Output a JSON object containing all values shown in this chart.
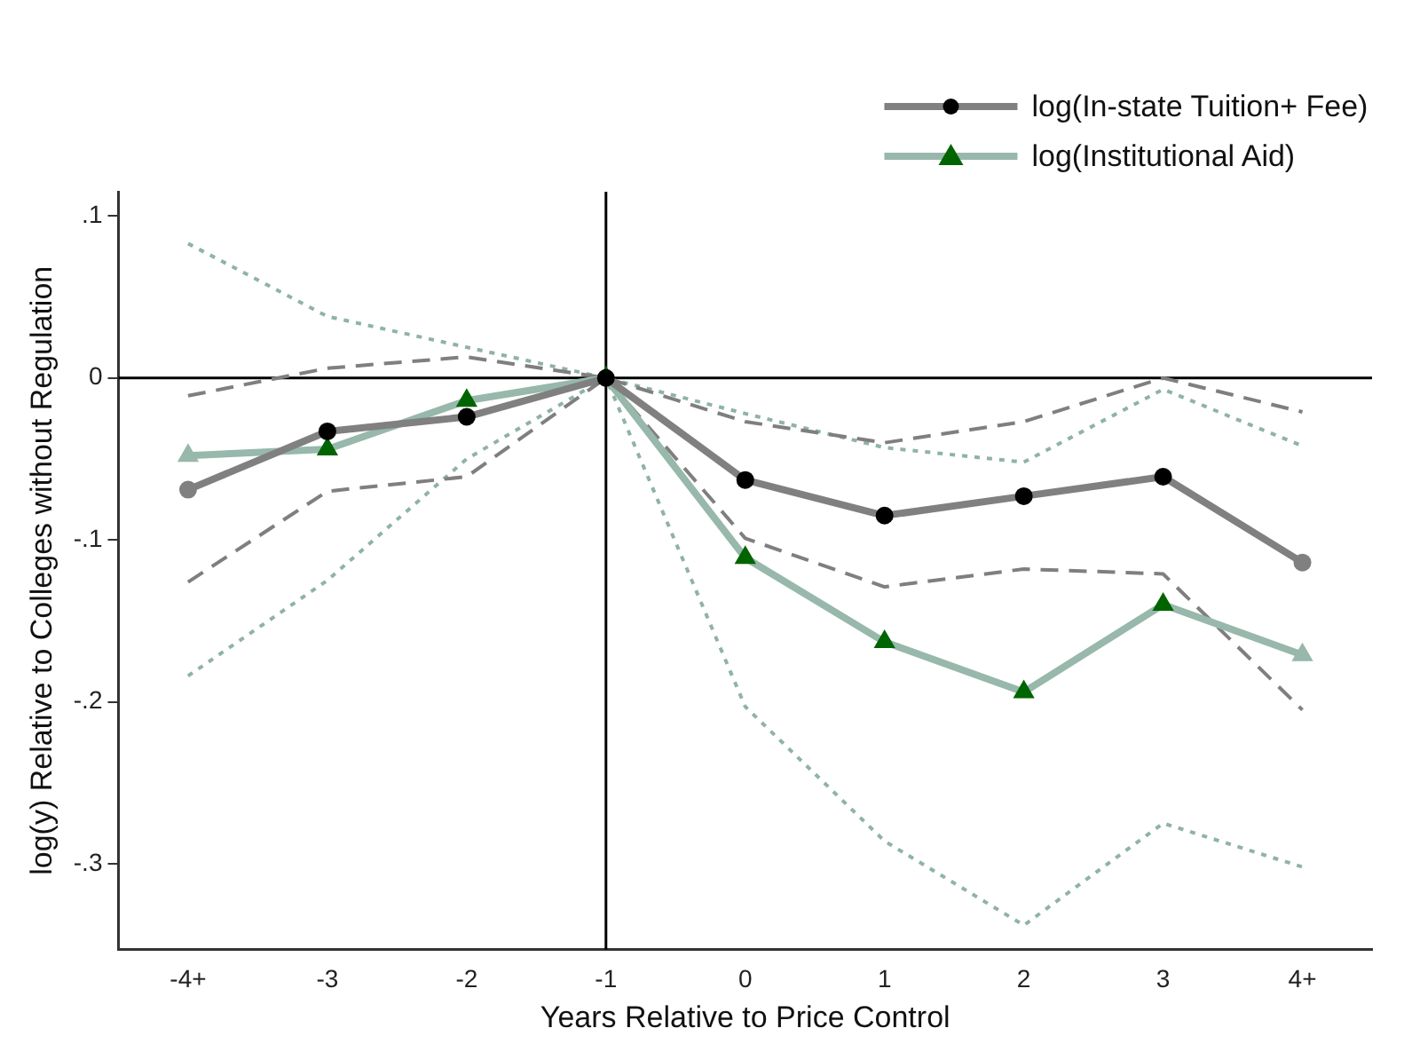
{
  "chart_data": {
    "type": "line",
    "xlabel": "Years Relative to Price Control",
    "ylabel": "log(y) Relative to Colleges without Regulation",
    "categories": [
      "-4+",
      "-3",
      "-2",
      "-1",
      "0",
      "1",
      "2",
      "3",
      "4+"
    ],
    "series": [
      {
        "name": null,
        "color": "#7f7f7f",
        "line_style": "dashed",
        "marker": "none",
        "values": [
          -0.011,
          0.006,
          0.013,
          0,
          -0.027,
          -0.04,
          -0.027,
          0,
          -0.021
        ]
      },
      {
        "name": null,
        "color": "#7f7f7f",
        "line_style": "dashed",
        "marker": "none",
        "values": [
          -0.126,
          -0.07,
          -0.061,
          0,
          -0.099,
          -0.129,
          -0.118,
          -0.121,
          -0.205
        ]
      },
      {
        "name": null,
        "color": "#8fb3a5",
        "line_style": "dotted",
        "marker": "none",
        "values": [
          0.083,
          0.038,
          0.019,
          0,
          -0.022,
          -0.043,
          -0.052,
          -0.007,
          -0.042
        ]
      },
      {
        "name": null,
        "color": "#8fb3a5",
        "line_style": "dotted",
        "marker": "none",
        "values": [
          -0.184,
          -0.125,
          -0.05,
          0,
          -0.203,
          -0.286,
          -0.338,
          -0.275,
          -0.302
        ]
      },
      {
        "name": "log(In-state Tuition+ Fee)",
        "color": "#808080",
        "colors": [
          "#808080",
          "#000000",
          "#000000",
          "#000000",
          "#000000",
          "#000000",
          "#000000",
          "#000000",
          "#808080"
        ],
        "line_style": "solid",
        "marker": "circle",
        "values": [
          -0.069,
          -0.033,
          -0.024,
          0,
          -0.063,
          -0.085,
          -0.073,
          -0.061,
          -0.114
        ]
      },
      {
        "name": "log(Institutional Aid)",
        "color": "#97b8ab",
        "colors": [
          "#97b8ab",
          "#006400",
          "#006400",
          "#006400",
          "#006400",
          "#006400",
          "#006400",
          "#006400",
          "#97b8ab"
        ],
        "line_style": "solid",
        "marker": "triangle",
        "values": [
          -0.048,
          -0.044,
          -0.014,
          0,
          -0.111,
          -0.163,
          -0.194,
          -0.14,
          -0.171
        ]
      }
    ],
    "ylim": [
      -0.353,
      0.115
    ],
    "yticks": [
      {
        "value": 0.1,
        "label": ".1"
      },
      0,
      {
        "value": -0.1,
        "label": "-.1"
      },
      {
        "value": -0.2,
        "label": "-.2"
      },
      {
        "value": -0.3,
        "label": "-.3"
      }
    ],
    "ref_lines": [
      {
        "axis": "x",
        "value": "-1",
        "color": "#000000"
      },
      {
        "axis": "y",
        "value": 0,
        "color": "#000000"
      }
    ],
    "grid": false,
    "legend": "top right"
  }
}
